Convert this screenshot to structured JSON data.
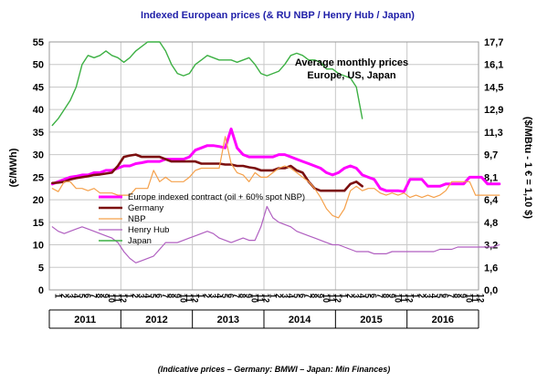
{
  "chart_data": {
    "type": "line",
    "title": "Indexed European prices (& RU NBP  / Henry Hub / Japan)",
    "ylabel_left": "(€/MWh)",
    "ylabel_right": "($/MBtu - 1 € = 1,10 $)",
    "ylim_left": [
      0,
      55
    ],
    "ylim_right": [
      0,
      17.7
    ],
    "yticks_left": [
      "0",
      "5",
      "10",
      "15",
      "20",
      "25",
      "30",
      "35",
      "40",
      "45",
      "50",
      "55"
    ],
    "yticks_right": [
      "0,0",
      "1,6",
      "3,2",
      "4,8",
      "6,4",
      "8,1",
      "9,7",
      "11,3",
      "12,9",
      "14,5",
      "16,1",
      "17,7"
    ],
    "month_tick_labels": [
      "1",
      "2",
      "3",
      "4",
      "5",
      "6",
      "7",
      "8",
      "9",
      "10",
      "11",
      "12"
    ],
    "years": [
      "2011",
      "2012",
      "2013",
      "2014",
      "2015",
      "2016"
    ],
    "annotation_line1": "Average monthly prices",
    "annotation_line2": "Europe, US, Japan",
    "footer": "(Indicative prices –  Germany: BMWI – Japan: Min Finances)",
    "grid": true,
    "legend_position": "center-left",
    "series": [
      {
        "name": "Europe indexed contract (oil + 60% spot NBP)",
        "color": "#ff00ff",
        "start_index": 0,
        "values": [
          23.5,
          24,
          24.5,
          25,
          25.2,
          25.5,
          25.5,
          26,
          26,
          26.5,
          26.5,
          27,
          27.5,
          27.5,
          28,
          28.2,
          28.5,
          28.5,
          28.5,
          29,
          29,
          29,
          29,
          29.5,
          31,
          31.5,
          32,
          32,
          31.8,
          31.5,
          35.7,
          31.5,
          30,
          29.5,
          29.5,
          29.5,
          29.5,
          29.5,
          30,
          30,
          29.5,
          29,
          28.5,
          28,
          27.5,
          27,
          26,
          25.5,
          26,
          27,
          27.5,
          27,
          25.5,
          25,
          24.5,
          22.5,
          22,
          22,
          22,
          21.8,
          24.5,
          24.5,
          24.5,
          23,
          23,
          23,
          23.5,
          23.5,
          23.5,
          23.5,
          25,
          25,
          25,
          23.5,
          23.5,
          23.5
        ]
      },
      {
        "name": "Germany",
        "color": "#7b0f0f",
        "start_index": 0,
        "values": [
          23.7,
          23.8,
          24,
          24.5,
          24.8,
          25,
          25.2,
          25.5,
          25.6,
          25.8,
          26,
          27.5,
          29.5,
          29.8,
          30,
          29.5,
          29.5,
          29.5,
          29.5,
          29,
          28.5,
          28.5,
          28.5,
          28.5,
          28.5,
          28,
          28,
          28,
          28,
          27.8,
          27.8,
          27.5,
          27.5,
          27.2,
          27,
          26.5,
          26.5,
          26.5,
          27,
          27,
          27.5,
          26.5,
          26,
          24,
          22.5,
          22,
          22,
          22,
          22,
          22,
          23.5,
          24,
          23
        ]
      },
      {
        "name": "NBP",
        "color": "#f5a04a",
        "start_index": 0,
        "values": [
          22.5,
          21.8,
          24,
          24,
          22.5,
          22.5,
          22,
          22.5,
          21.5,
          21.5,
          21.5,
          21,
          21,
          21,
          22.5,
          22.5,
          22.5,
          26.5,
          24,
          25,
          24,
          24,
          24,
          25,
          26.5,
          27,
          27,
          27,
          27,
          34,
          28,
          26,
          25.5,
          24,
          26,
          25,
          25,
          26,
          27,
          27.5,
          27,
          26,
          25,
          24,
          22.5,
          20.5,
          18,
          16.5,
          16,
          18,
          22,
          23,
          22,
          22.5,
          22.5,
          21.5,
          21,
          21.5,
          21,
          21.5,
          20.5,
          21,
          20.5,
          21,
          20.5,
          21,
          22,
          24,
          24,
          24,
          24,
          21,
          21,
          21,
          21,
          21
        ]
      },
      {
        "name": "Henry Hub",
        "color": "#b05fc0",
        "start_index": 0,
        "values": [
          14,
          13,
          12.5,
          13,
          13.5,
          14,
          13.5,
          13,
          12.5,
          12,
          11.5,
          10.5,
          8.5,
          7,
          6,
          6.5,
          7,
          7.5,
          9,
          10.5,
          10.5,
          10.5,
          11,
          11.5,
          12,
          12.5,
          13,
          12.5,
          11.5,
          11,
          10.5,
          11,
          11.5,
          11,
          11,
          14,
          18.5,
          16,
          15,
          14.5,
          14,
          13,
          12.5,
          12,
          11.5,
          11,
          10.5,
          10,
          10,
          9.5,
          9,
          8.5,
          8.5,
          8.5,
          8,
          8,
          8,
          8.5,
          8.5,
          8.5,
          8.5,
          8.5,
          8.5,
          8.5,
          8.5,
          9,
          9,
          9,
          9.5,
          9.5,
          9.5,
          9.5,
          9.5,
          9.5,
          9.5,
          10
        ]
      },
      {
        "name": "Japan",
        "color": "#3cb043",
        "start_index": 0,
        "values": [
          36.5,
          38,
          40,
          42,
          45,
          50,
          52,
          51.5,
          52,
          53,
          52,
          51.5,
          50.5,
          51.5,
          53,
          54,
          55,
          56,
          56,
          53,
          50,
          48,
          47.5,
          48,
          50,
          51,
          52,
          51.5,
          51,
          51,
          51,
          50.5,
          51,
          51.5,
          50,
          48,
          47.5,
          48,
          48.5,
          50,
          52,
          52.5,
          52,
          51,
          51,
          50.5,
          49,
          49,
          48,
          47.5,
          47,
          45,
          38
        ]
      }
    ]
  }
}
